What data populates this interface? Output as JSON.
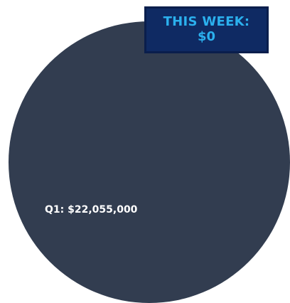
{
  "chart_data": {
    "type": "pie",
    "title": "",
    "slices": [
      {
        "label": "Q1: $22,055,000",
        "name": "Q1",
        "value": 22055000,
        "color": "#323d50"
      }
    ]
  },
  "summary": {
    "title": "THIS WEEK:",
    "value": "$0",
    "background": "#0f2a63",
    "text_color": "#2bb0ee"
  }
}
